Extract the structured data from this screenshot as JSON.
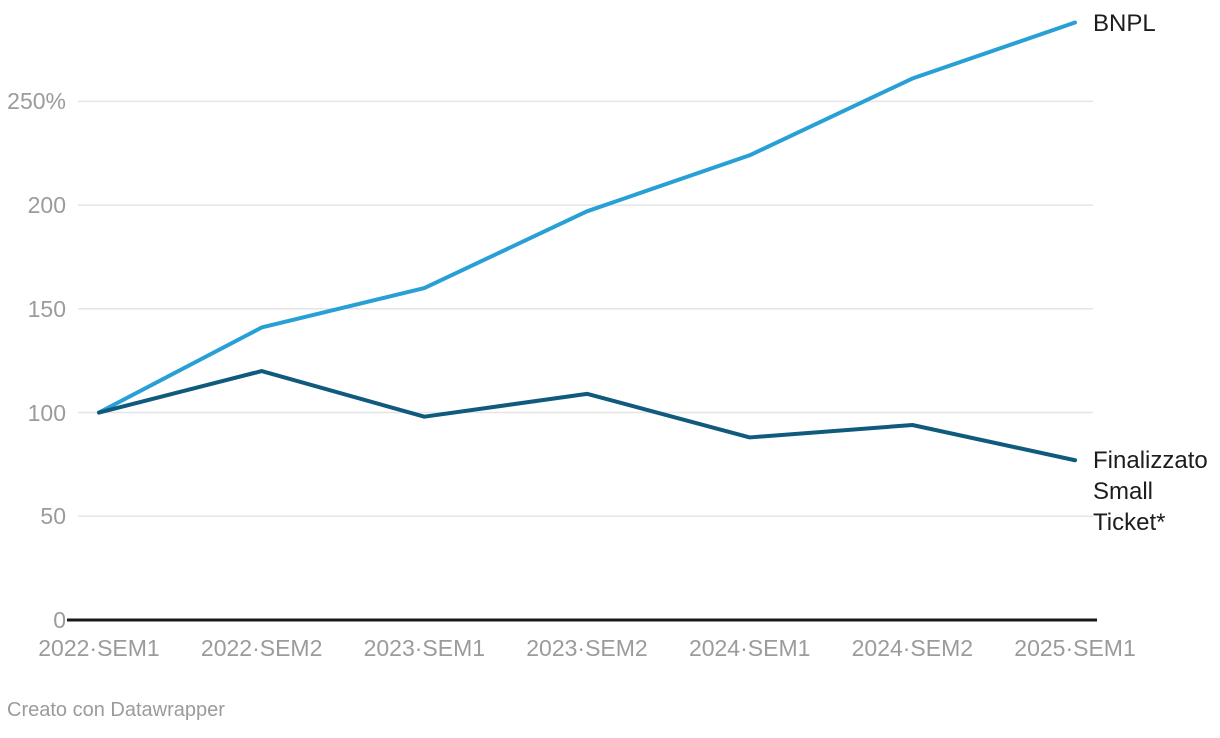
{
  "chart": {
    "footer": "Creato con Datawrapper"
  },
  "chart_data": {
    "type": "line",
    "title": "",
    "xlabel": "",
    "ylabel": "",
    "categories": [
      "2022·SEM1",
      "2022·SEM2",
      "2023·SEM1",
      "2023·SEM2",
      "2024·SEM1",
      "2024·SEM2",
      "2025·SEM1"
    ],
    "series": [
      {
        "name": "BNPL",
        "label_text": "BNPL",
        "values": [
          100,
          141,
          160,
          197,
          224,
          261,
          288
        ],
        "color": "#28a0d5"
      },
      {
        "name": "Finalizzato Small Ticket*",
        "label_text": "Finalizzato\nSmall\nTicket*",
        "values": [
          100,
          120,
          98,
          109,
          88,
          94,
          77
        ],
        "color": "#0f5a7d"
      }
    ],
    "ylim": [
      0,
      300
    ],
    "yticks": [
      {
        "value": 0,
        "label": "0"
      },
      {
        "value": 50,
        "label": "50"
      },
      {
        "value": 100,
        "label": "100"
      },
      {
        "value": 150,
        "label": "150"
      },
      {
        "value": 200,
        "label": "200"
      },
      {
        "value": 250,
        "label": "250%"
      }
    ],
    "grid": true,
    "legend_position": "direct-labels-right"
  },
  "colors": {
    "background": "#ffffff",
    "gridline": "#e5e5e5",
    "axis_line": "#17181c",
    "tick_text": "#9b9b9b",
    "series_label_text": "#1d1d1d",
    "footer_text": "#9b9b9b"
  }
}
